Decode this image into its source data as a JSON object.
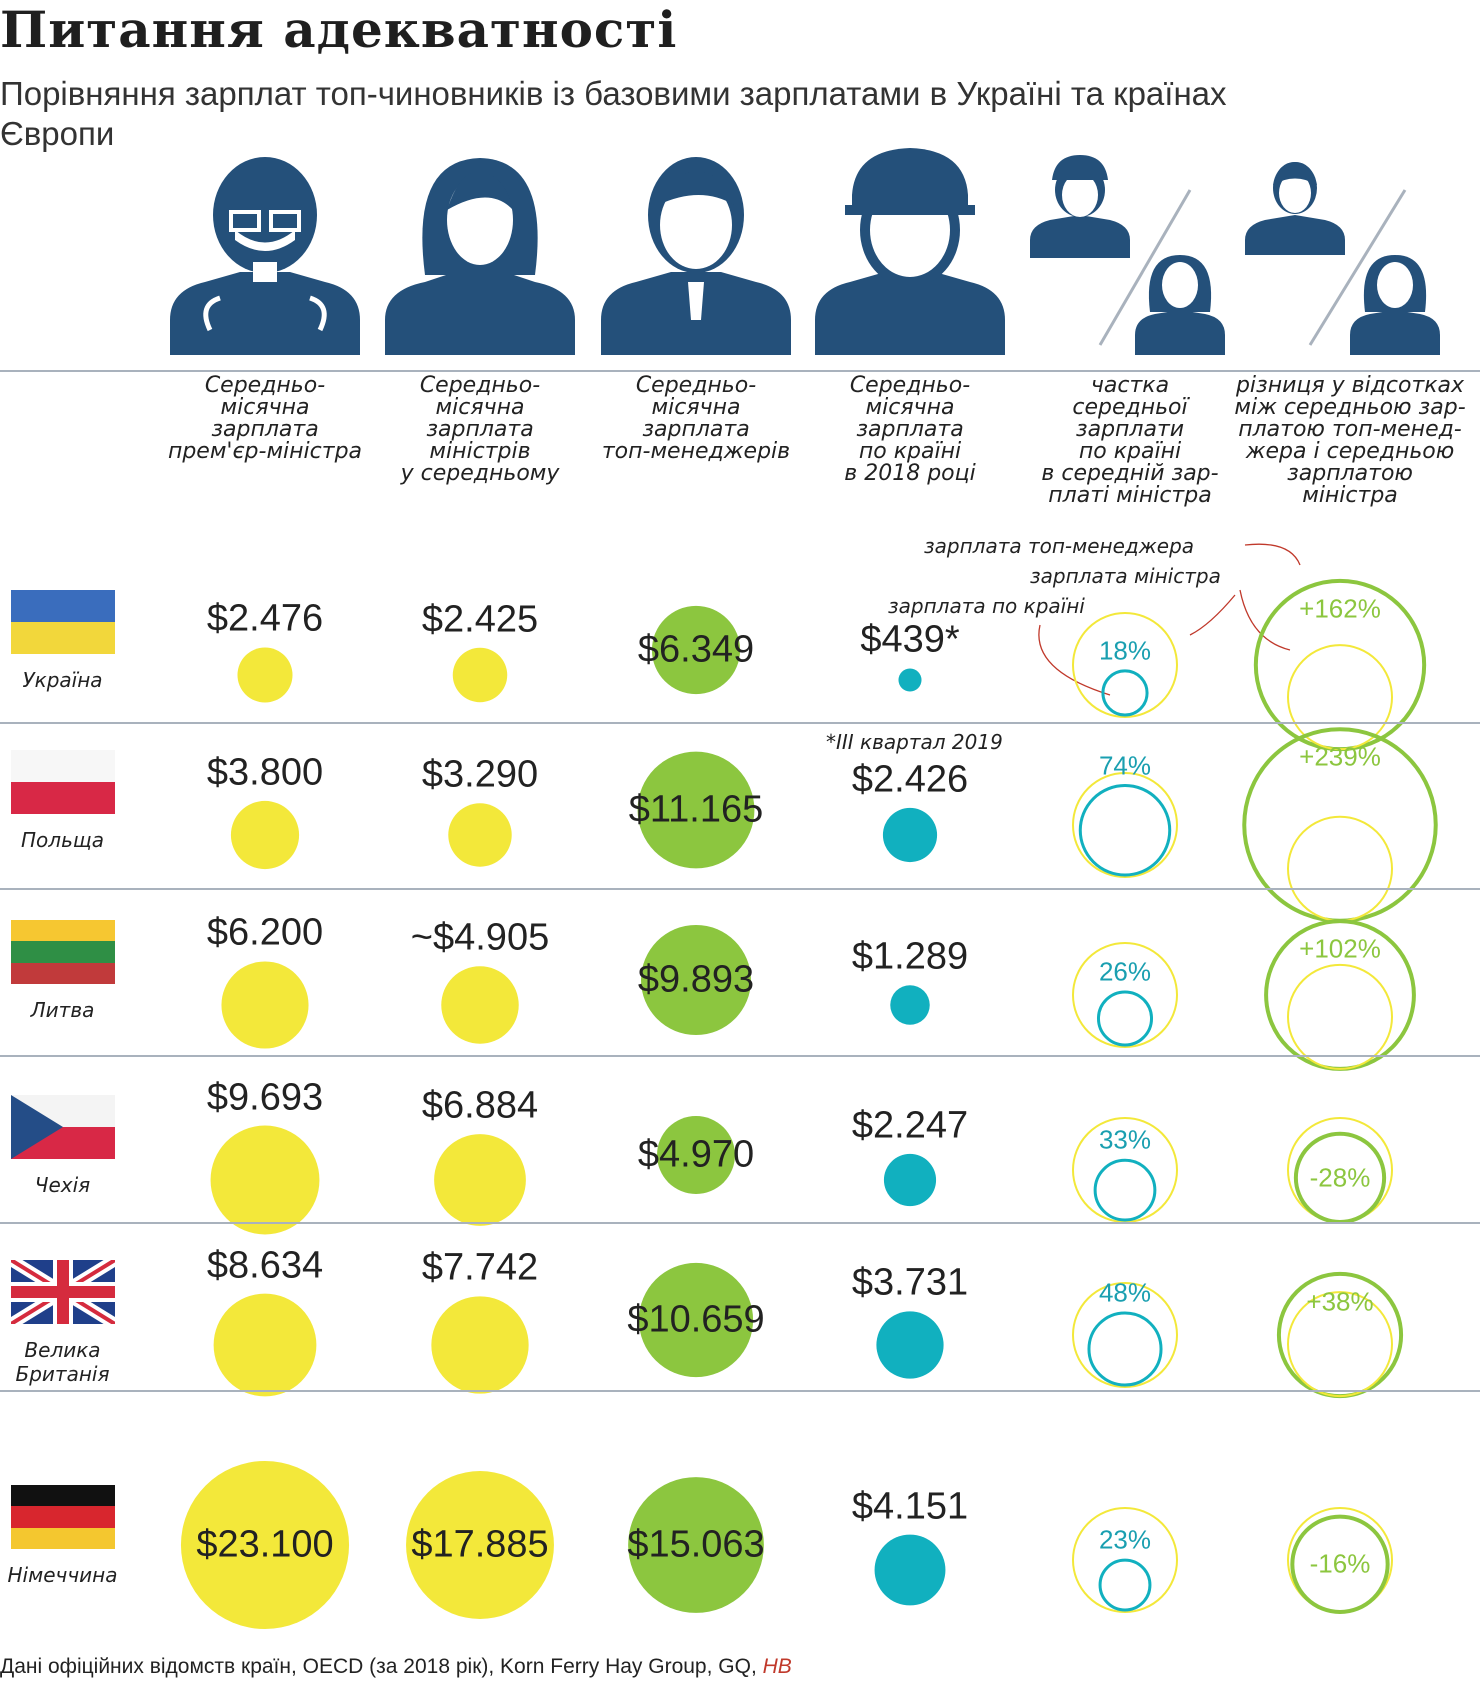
{
  "title": "Питання адекватності",
  "subtitle": "Порівняння зарплат топ-чиновників із базовими зарплатами в Україні та країнах Європи",
  "colors": {
    "yellow": "#f3e83a",
    "green": "#8cc63f",
    "teal": "#11b0bf",
    "icon": "#24507a",
    "line": "#a9b2bd",
    "hb": "#c0392b"
  },
  "columns": [
    {
      "label": "Середньо-\nмісячна\nзарплата\nпрем'єр-міністра",
      "icon": "prime-minister-icon"
    },
    {
      "label": "Середньо-\nмісячна\nзарплата\nміністрів\nу середньому",
      "icon": "female-minister-icon"
    },
    {
      "label": "Середньо-\nмісячна\nзарплата\nтоп-менеджерів",
      "icon": "top-manager-icon"
    },
    {
      "label": "Середньо-\nмісячна\nзарплата\nпо країні\nв 2018 році",
      "icon": "worker-icon"
    },
    {
      "label": "частка\nсередньої\nзарплати\nпо країні\nв середній зар-\nплаті міністра",
      "icon": "worker-over-minister-icon"
    },
    {
      "label": "різниця у відсотках\nміж середньою зар-\nплатою топ-менед-\nжера і середньою\nзарплатою\nміністра",
      "icon": "manager-over-minister-icon"
    }
  ],
  "legend": {
    "top_manager": "зарплата топ-менеджера",
    "minister": "зарплата міністра",
    "country": "зарплата по країні"
  },
  "footnote": "*III квартал 2019",
  "source_text": "Дані офіційних відомств країн, OECD (за 2018 рік), Korn Ferry Hay Group, GQ,",
  "source_brand": "НВ",
  "chart_data": {
    "type": "table",
    "title": "Питання адекватності",
    "units": "USD per month",
    "countries": [
      {
        "name": "Україна",
        "flag": "ukraine-flag",
        "pm": 2476,
        "pm_label": "$2.476",
        "ministers": 2425,
        "ministers_label": "$2.425",
        "managers": 6349,
        "managers_label": "$6.349",
        "avg": 439,
        "avg_label": "$439*",
        "share_pct": 18,
        "share_label": "18%",
        "diff_pct": 162,
        "diff_label": "+162%"
      },
      {
        "name": "Польща",
        "flag": "poland-flag",
        "pm": 3800,
        "pm_label": "$3.800",
        "ministers": 3290,
        "ministers_label": "$3.290",
        "managers": 11165,
        "managers_label": "$11.165",
        "avg": 2426,
        "avg_label": "$2.426",
        "share_pct": 74,
        "share_label": "74%",
        "diff_pct": 239,
        "diff_label": "+239%"
      },
      {
        "name": "Литва",
        "flag": "lithuania-flag",
        "pm": 6200,
        "pm_label": "$6.200",
        "ministers": 4905,
        "ministers_label": "~$4.905",
        "managers": 9893,
        "managers_label": "$9.893",
        "avg": 1289,
        "avg_label": "$1.289",
        "share_pct": 26,
        "share_label": "26%",
        "diff_pct": 102,
        "diff_label": "+102%"
      },
      {
        "name": "Чехія",
        "flag": "czech-flag",
        "pm": 9693,
        "pm_label": "$9.693",
        "ministers": 6884,
        "ministers_label": "$6.884",
        "managers": 4970,
        "managers_label": "$4.970",
        "avg": 2247,
        "avg_label": "$2.247",
        "share_pct": 33,
        "share_label": "33%",
        "diff_pct": -28,
        "diff_label": "-28%"
      },
      {
        "name": "Велика Британія",
        "flag": "uk-flag",
        "pm": 8634,
        "pm_label": "$8.634",
        "ministers": 7742,
        "ministers_label": "$7.742",
        "managers": 10659,
        "managers_label": "$10.659",
        "avg": 3731,
        "avg_label": "$3.731",
        "share_pct": 48,
        "share_label": "48%",
        "diff_pct": 38,
        "diff_label": "+38%"
      },
      {
        "name": "Німеччина",
        "flag": "germany-flag",
        "pm": 23100,
        "pm_label": "$23.100",
        "ministers": 17885,
        "ministers_label": "$17.885",
        "managers": 15063,
        "managers_label": "$15.063",
        "avg": 4151,
        "avg_label": "$4.151",
        "share_pct": 23,
        "share_label": "23%",
        "diff_pct": -16,
        "diff_label": "-16%"
      }
    ]
  }
}
